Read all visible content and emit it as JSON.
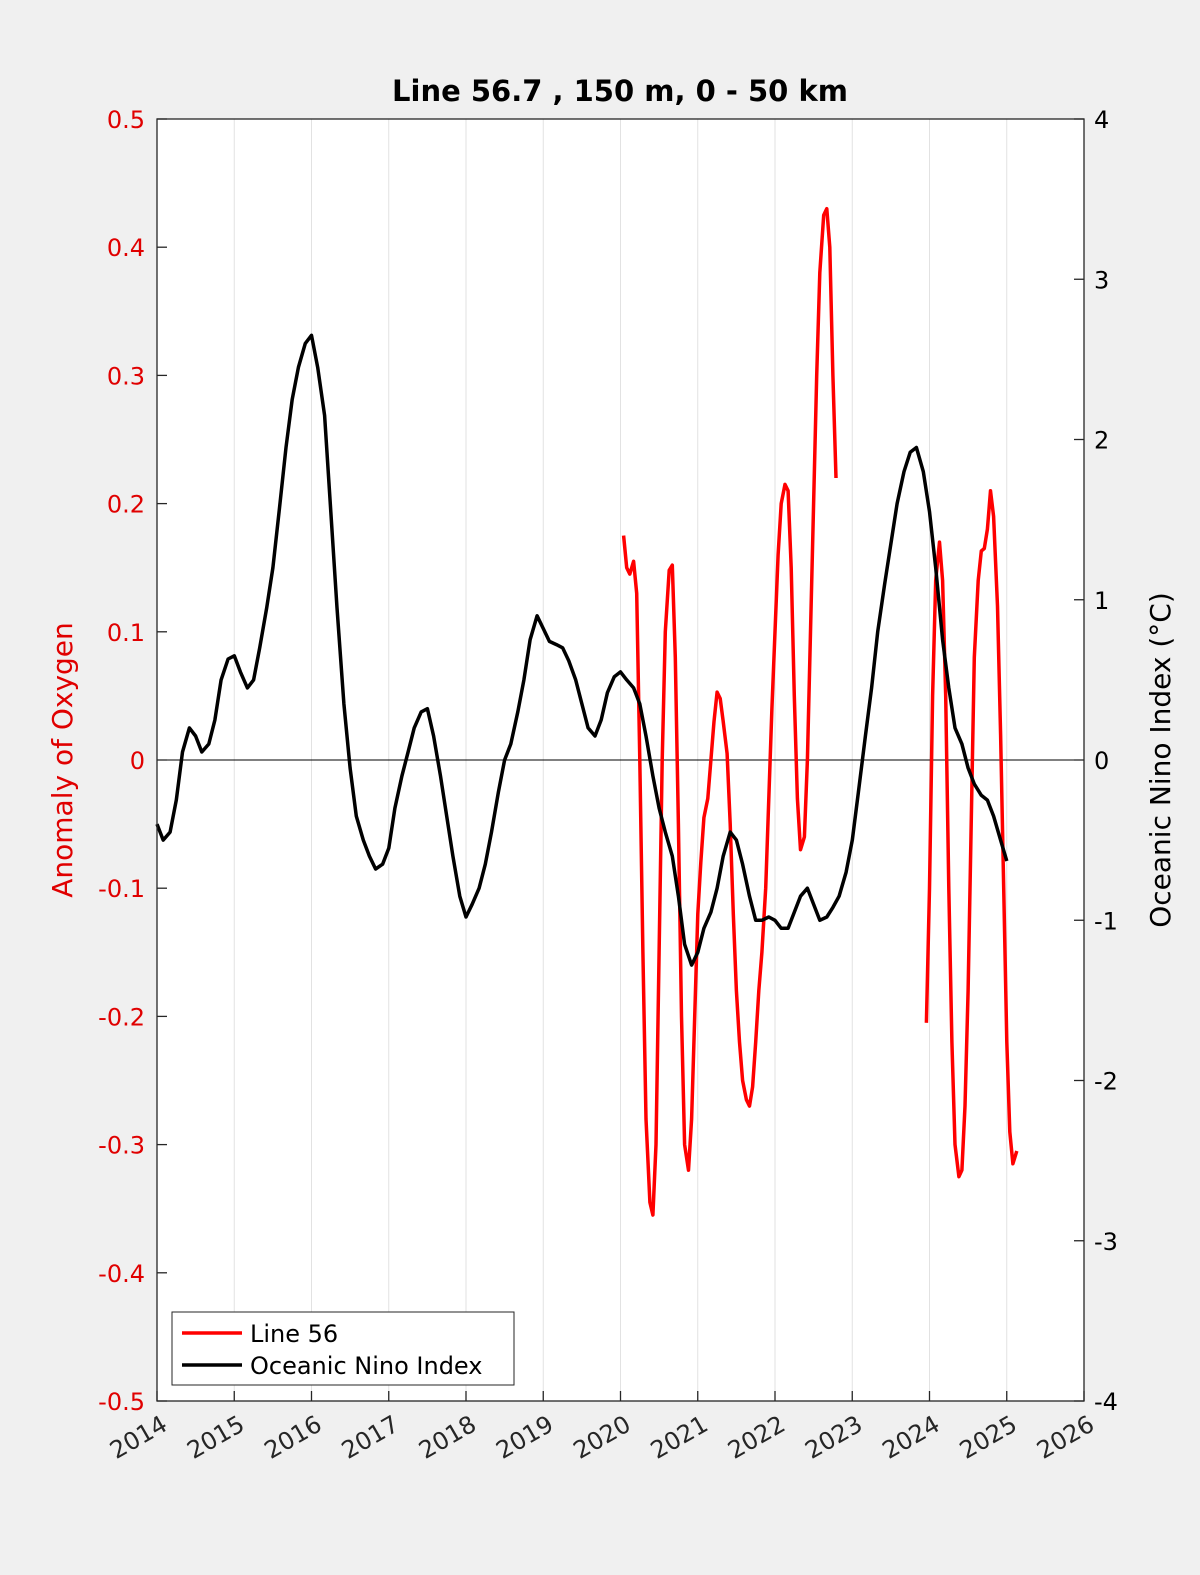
{
  "chart_data": {
    "type": "line",
    "title": "Line 56.7 , 150 m, 0 - 50 km",
    "xlabel": "",
    "xlim": [
      2014,
      2026
    ],
    "xticks": [
      "2014",
      "2015",
      "2016",
      "2017",
      "2018",
      "2019",
      "2020",
      "2021",
      "2022",
      "2023",
      "2024",
      "2025",
      "2026"
    ],
    "ylabel_left": "Anomaly of Oxygen",
    "ylim_left": [
      -0.5,
      0.5
    ],
    "yticks_left": [
      "-0.5",
      "-0.4",
      "-0.3",
      "-0.2",
      "-0.1",
      "0",
      "0.1",
      "0.2",
      "0.3",
      "0.4",
      "0.5"
    ],
    "ylabel_right": "Oceanic Nino Index (°C)",
    "ylim_right": [
      -4,
      4
    ],
    "yticks_right": [
      "-4",
      "-3",
      "-2",
      "-1",
      "0",
      "1",
      "2",
      "3",
      "4"
    ],
    "grid_x": true,
    "zero_line": true,
    "legend_position": "bottom-left",
    "colors": {
      "line56": "#ff0000",
      "oni": "#000000",
      "left_axis": "#e00000"
    },
    "series": [
      {
        "name": "Line 56",
        "axis": "left",
        "segments": [
          [
            [
              2020.04,
              0.175
            ],
            [
              2020.08,
              0.15
            ],
            [
              2020.12,
              0.145
            ],
            [
              2020.17,
              0.155
            ],
            [
              2020.21,
              0.13
            ],
            [
              2020.25,
              0.0
            ],
            [
              2020.29,
              -0.15
            ],
            [
              2020.33,
              -0.28
            ],
            [
              2020.38,
              -0.345
            ],
            [
              2020.42,
              -0.355
            ],
            [
              2020.46,
              -0.3
            ],
            [
              2020.5,
              -0.15
            ],
            [
              2020.54,
              0.0
            ],
            [
              2020.58,
              0.1
            ],
            [
              2020.63,
              0.148
            ],
            [
              2020.67,
              0.152
            ],
            [
              2020.71,
              0.08
            ],
            [
              2020.75,
              -0.05
            ],
            [
              2020.79,
              -0.2
            ],
            [
              2020.83,
              -0.3
            ],
            [
              2020.88,
              -0.32
            ],
            [
              2020.92,
              -0.28
            ],
            [
              2020.96,
              -0.2
            ],
            [
              2021.0,
              -0.12
            ],
            [
              2021.04,
              -0.08
            ],
            [
              2021.08,
              -0.045
            ],
            [
              2021.13,
              -0.03
            ],
            [
              2021.17,
              -0.0
            ],
            [
              2021.21,
              0.03
            ],
            [
              2021.25,
              0.053
            ],
            [
              2021.29,
              0.048
            ],
            [
              2021.33,
              0.03
            ],
            [
              2021.38,
              0.005
            ],
            [
              2021.42,
              -0.05
            ],
            [
              2021.46,
              -0.12
            ],
            [
              2021.5,
              -0.18
            ],
            [
              2021.54,
              -0.22
            ],
            [
              2021.58,
              -0.25
            ],
            [
              2021.63,
              -0.265
            ],
            [
              2021.67,
              -0.27
            ],
            [
              2021.71,
              -0.255
            ],
            [
              2021.75,
              -0.22
            ],
            [
              2021.79,
              -0.18
            ],
            [
              2021.83,
              -0.15
            ],
            [
              2021.88,
              -0.1
            ],
            [
              2021.92,
              -0.03
            ],
            [
              2021.96,
              0.04
            ],
            [
              2022.0,
              0.1
            ],
            [
              2022.04,
              0.16
            ],
            [
              2022.08,
              0.2
            ],
            [
              2022.13,
              0.215
            ],
            [
              2022.17,
              0.21
            ],
            [
              2022.21,
              0.15
            ],
            [
              2022.25,
              0.05
            ],
            [
              2022.29,
              -0.03
            ],
            [
              2022.33,
              -0.07
            ],
            [
              2022.38,
              -0.06
            ],
            [
              2022.42,
              0.0
            ],
            [
              2022.46,
              0.1
            ],
            [
              2022.5,
              0.2
            ],
            [
              2022.54,
              0.3
            ],
            [
              2022.58,
              0.38
            ],
            [
              2022.63,
              0.425
            ],
            [
              2022.67,
              0.43
            ],
            [
              2022.71,
              0.4
            ],
            [
              2022.75,
              0.3
            ],
            [
              2022.79,
              0.22
            ]
          ],
          [
            [
              2023.96,
              -0.205
            ],
            [
              2024.0,
              -0.1
            ],
            [
              2024.04,
              0.05
            ],
            [
              2024.08,
              0.14
            ],
            [
              2024.13,
              0.17
            ],
            [
              2024.17,
              0.14
            ],
            [
              2024.21,
              0.05
            ],
            [
              2024.25,
              -0.1
            ],
            [
              2024.29,
              -0.22
            ],
            [
              2024.33,
              -0.3
            ],
            [
              2024.38,
              -0.325
            ],
            [
              2024.42,
              -0.32
            ],
            [
              2024.46,
              -0.27
            ],
            [
              2024.5,
              -0.18
            ],
            [
              2024.54,
              -0.05
            ],
            [
              2024.58,
              0.08
            ],
            [
              2024.63,
              0.14
            ],
            [
              2024.67,
              0.163
            ],
            [
              2024.71,
              0.165
            ],
            [
              2024.75,
              0.18
            ],
            [
              2024.79,
              0.21
            ],
            [
              2024.83,
              0.19
            ],
            [
              2024.88,
              0.12
            ],
            [
              2024.92,
              0.02
            ],
            [
              2024.96,
              -0.1
            ],
            [
              2025.0,
              -0.22
            ],
            [
              2025.04,
              -0.29
            ],
            [
              2025.08,
              -0.315
            ],
            [
              2025.13,
              -0.305
            ]
          ]
        ]
      },
      {
        "name": "Oceanic Nino Index",
        "axis": "right",
        "segments": [
          [
            [
              2014.0,
              -0.4
            ],
            [
              2014.08,
              -0.5
            ],
            [
              2014.17,
              -0.45
            ],
            [
              2014.25,
              -0.25
            ],
            [
              2014.33,
              0.05
            ],
            [
              2014.42,
              0.2
            ],
            [
              2014.5,
              0.15
            ],
            [
              2014.58,
              0.05
            ],
            [
              2014.67,
              0.1
            ],
            [
              2014.75,
              0.25
            ],
            [
              2014.83,
              0.5
            ],
            [
              2014.92,
              0.63
            ],
            [
              2015.0,
              0.65
            ],
            [
              2015.08,
              0.55
            ],
            [
              2015.17,
              0.45
            ],
            [
              2015.25,
              0.5
            ],
            [
              2015.33,
              0.7
            ],
            [
              2015.42,
              0.95
            ],
            [
              2015.5,
              1.2
            ],
            [
              2015.58,
              1.55
            ],
            [
              2015.67,
              1.95
            ],
            [
              2015.75,
              2.25
            ],
            [
              2015.83,
              2.45
            ],
            [
              2015.92,
              2.6
            ],
            [
              2016.0,
              2.65
            ],
            [
              2016.08,
              2.45
            ],
            [
              2016.17,
              2.15
            ],
            [
              2016.25,
              1.55
            ],
            [
              2016.33,
              0.95
            ],
            [
              2016.42,
              0.35
            ],
            [
              2016.5,
              -0.05
            ],
            [
              2016.58,
              -0.35
            ],
            [
              2016.67,
              -0.5
            ],
            [
              2016.75,
              -0.6
            ],
            [
              2016.83,
              -0.68
            ],
            [
              2016.92,
              -0.65
            ],
            [
              2017.0,
              -0.55
            ],
            [
              2017.08,
              -0.3
            ],
            [
              2017.17,
              -0.1
            ],
            [
              2017.25,
              0.05
            ],
            [
              2017.33,
              0.2
            ],
            [
              2017.42,
              0.3
            ],
            [
              2017.5,
              0.32
            ],
            [
              2017.58,
              0.15
            ],
            [
              2017.67,
              -0.1
            ],
            [
              2017.75,
              -0.35
            ],
            [
              2017.83,
              -0.6
            ],
            [
              2017.92,
              -0.85
            ],
            [
              2018.0,
              -0.98
            ],
            [
              2018.08,
              -0.9
            ],
            [
              2018.17,
              -0.8
            ],
            [
              2018.25,
              -0.65
            ],
            [
              2018.33,
              -0.45
            ],
            [
              2018.42,
              -0.2
            ],
            [
              2018.5,
              0.0
            ],
            [
              2018.58,
              0.1
            ],
            [
              2018.67,
              0.3
            ],
            [
              2018.75,
              0.5
            ],
            [
              2018.83,
              0.75
            ],
            [
              2018.92,
              0.9
            ],
            [
              2019.0,
              0.82
            ],
            [
              2019.08,
              0.74
            ],
            [
              2019.17,
              0.72
            ],
            [
              2019.25,
              0.7
            ],
            [
              2019.33,
              0.62
            ],
            [
              2019.42,
              0.5
            ],
            [
              2019.5,
              0.35
            ],
            [
              2019.58,
              0.2
            ],
            [
              2019.67,
              0.15
            ],
            [
              2019.75,
              0.25
            ],
            [
              2019.83,
              0.42
            ],
            [
              2019.92,
              0.52
            ],
            [
              2020.0,
              0.55
            ],
            [
              2020.08,
              0.5
            ],
            [
              2020.17,
              0.45
            ],
            [
              2020.25,
              0.35
            ],
            [
              2020.33,
              0.15
            ],
            [
              2020.42,
              -0.1
            ],
            [
              2020.5,
              -0.3
            ],
            [
              2020.58,
              -0.45
            ],
            [
              2020.67,
              -0.6
            ],
            [
              2020.75,
              -0.85
            ],
            [
              2020.83,
              -1.15
            ],
            [
              2020.92,
              -1.28
            ],
            [
              2021.0,
              -1.2
            ],
            [
              2021.08,
              -1.05
            ],
            [
              2021.17,
              -0.95
            ],
            [
              2021.25,
              -0.8
            ],
            [
              2021.33,
              -0.6
            ],
            [
              2021.42,
              -0.45
            ],
            [
              2021.5,
              -0.5
            ],
            [
              2021.58,
              -0.65
            ],
            [
              2021.67,
              -0.85
            ],
            [
              2021.75,
              -1.0
            ],
            [
              2021.83,
              -1.0
            ],
            [
              2021.92,
              -0.98
            ],
            [
              2022.0,
              -1.0
            ],
            [
              2022.08,
              -1.05
            ],
            [
              2022.17,
              -1.05
            ],
            [
              2022.25,
              -0.95
            ],
            [
              2022.33,
              -0.85
            ],
            [
              2022.42,
              -0.8
            ],
            [
              2022.5,
              -0.9
            ],
            [
              2022.58,
              -1.0
            ],
            [
              2022.67,
              -0.98
            ],
            [
              2022.75,
              -0.92
            ],
            [
              2022.83,
              -0.85
            ],
            [
              2022.92,
              -0.7
            ],
            [
              2023.0,
              -0.5
            ],
            [
              2023.08,
              -0.2
            ],
            [
              2023.17,
              0.15
            ],
            [
              2023.25,
              0.45
            ],
            [
              2023.33,
              0.8
            ],
            [
              2023.42,
              1.1
            ],
            [
              2023.5,
              1.35
            ],
            [
              2023.58,
              1.6
            ],
            [
              2023.67,
              1.8
            ],
            [
              2023.75,
              1.92
            ],
            [
              2023.83,
              1.95
            ],
            [
              2023.92,
              1.8
            ],
            [
              2024.0,
              1.55
            ],
            [
              2024.08,
              1.2
            ],
            [
              2024.17,
              0.75
            ],
            [
              2024.25,
              0.45
            ],
            [
              2024.33,
              0.2
            ],
            [
              2024.42,
              0.1
            ],
            [
              2024.5,
              -0.05
            ],
            [
              2024.58,
              -0.15
            ],
            [
              2024.67,
              -0.22
            ],
            [
              2024.75,
              -0.25
            ],
            [
              2024.83,
              -0.35
            ],
            [
              2024.92,
              -0.5
            ],
            [
              2025.0,
              -0.63
            ]
          ]
        ]
      }
    ]
  }
}
